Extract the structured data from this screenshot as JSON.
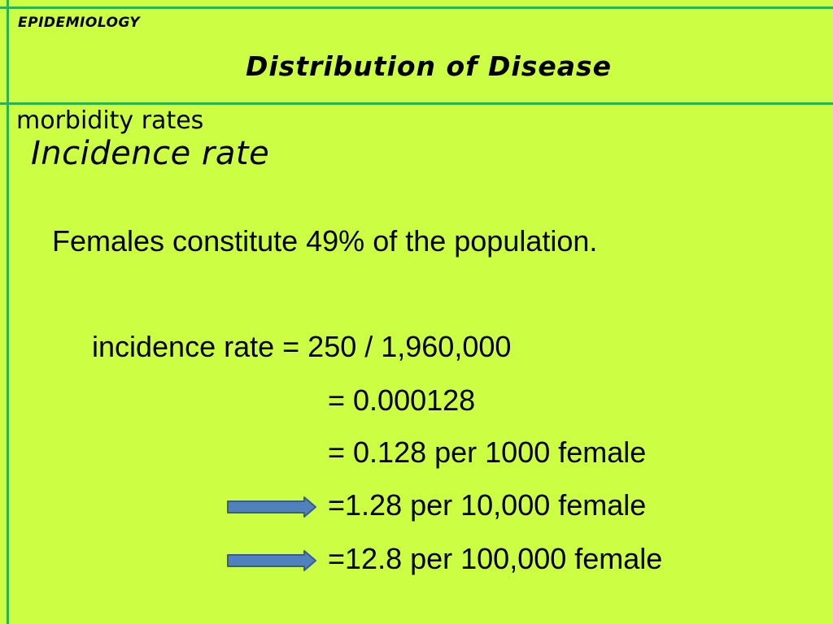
{
  "header": {
    "label": "EPIDEMIOLOGY",
    "title": "Distribution of Disease"
  },
  "content": {
    "section": "morbidity rates",
    "subsection": "Incidence rate",
    "intro": "Females constitute 49% of the population.",
    "equations": [
      "incidence rate = 250 / 1,960,000",
      "= 0.000128",
      "= 0.128 per 1000 female",
      "=1.28 per 10,000 female",
      "=12.8 per 100,000 female"
    ]
  },
  "colors": {
    "background": "#ccff44",
    "rule_lines": "#2db34a",
    "arrow_fill": "#4f81bd",
    "arrow_stroke": "#385d8a"
  },
  "icons": [
    "right-arrow-icon"
  ]
}
